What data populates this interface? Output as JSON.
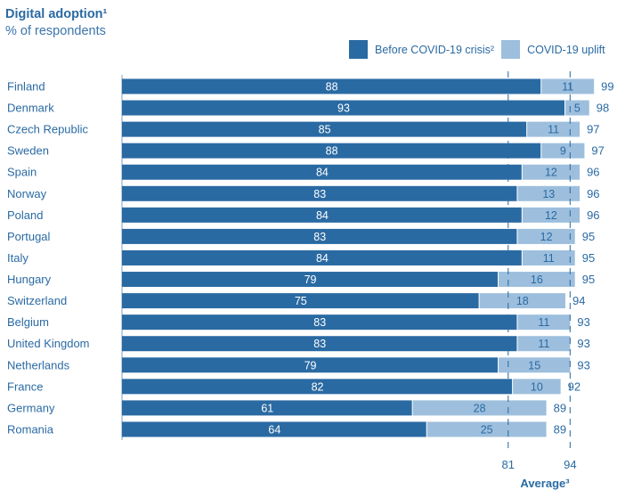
{
  "chart_data": {
    "type": "bar",
    "orientation": "horizontal",
    "stacked": true,
    "title": "Digital adoption¹",
    "subtitle": "% of respondents",
    "xlabel": "Average³",
    "ylabel": "",
    "xlim": [
      0,
      100
    ],
    "categories": [
      "Finland",
      "Denmark",
      "Czech Republic",
      "Sweden",
      "Spain",
      "Norway",
      "Poland",
      "Portugal",
      "Italy",
      "Hungary",
      "Switzerland",
      "Belgium",
      "United Kingdom",
      "Netherlands",
      "France",
      "Germany",
      "Romania"
    ],
    "series": [
      {
        "name": "Before COVID-19 crisis²",
        "color": "#2a6aa3",
        "values": [
          88,
          93,
          85,
          88,
          84,
          83,
          84,
          83,
          84,
          79,
          75,
          83,
          83,
          79,
          82,
          61,
          64
        ]
      },
      {
        "name": "COVID-19 uplift",
        "color": "#9dbfdd",
        "values": [
          11,
          5,
          11,
          9,
          12,
          13,
          12,
          12,
          11,
          16,
          18,
          11,
          11,
          15,
          10,
          28,
          25
        ]
      }
    ],
    "totals": [
      99,
      98,
      97,
      97,
      96,
      96,
      96,
      95,
      95,
      95,
      94,
      93,
      93,
      93,
      92,
      89,
      89
    ],
    "reference_lines": [
      {
        "value": 81,
        "label": "81",
        "style": "dashed"
      },
      {
        "value": 94,
        "label": "94",
        "style": "dashed"
      }
    ],
    "legend": {
      "position": "top-right",
      "entries": [
        "Before COVID-19 crisis²",
        "COVID-19 uplift"
      ]
    },
    "grid": false
  }
}
